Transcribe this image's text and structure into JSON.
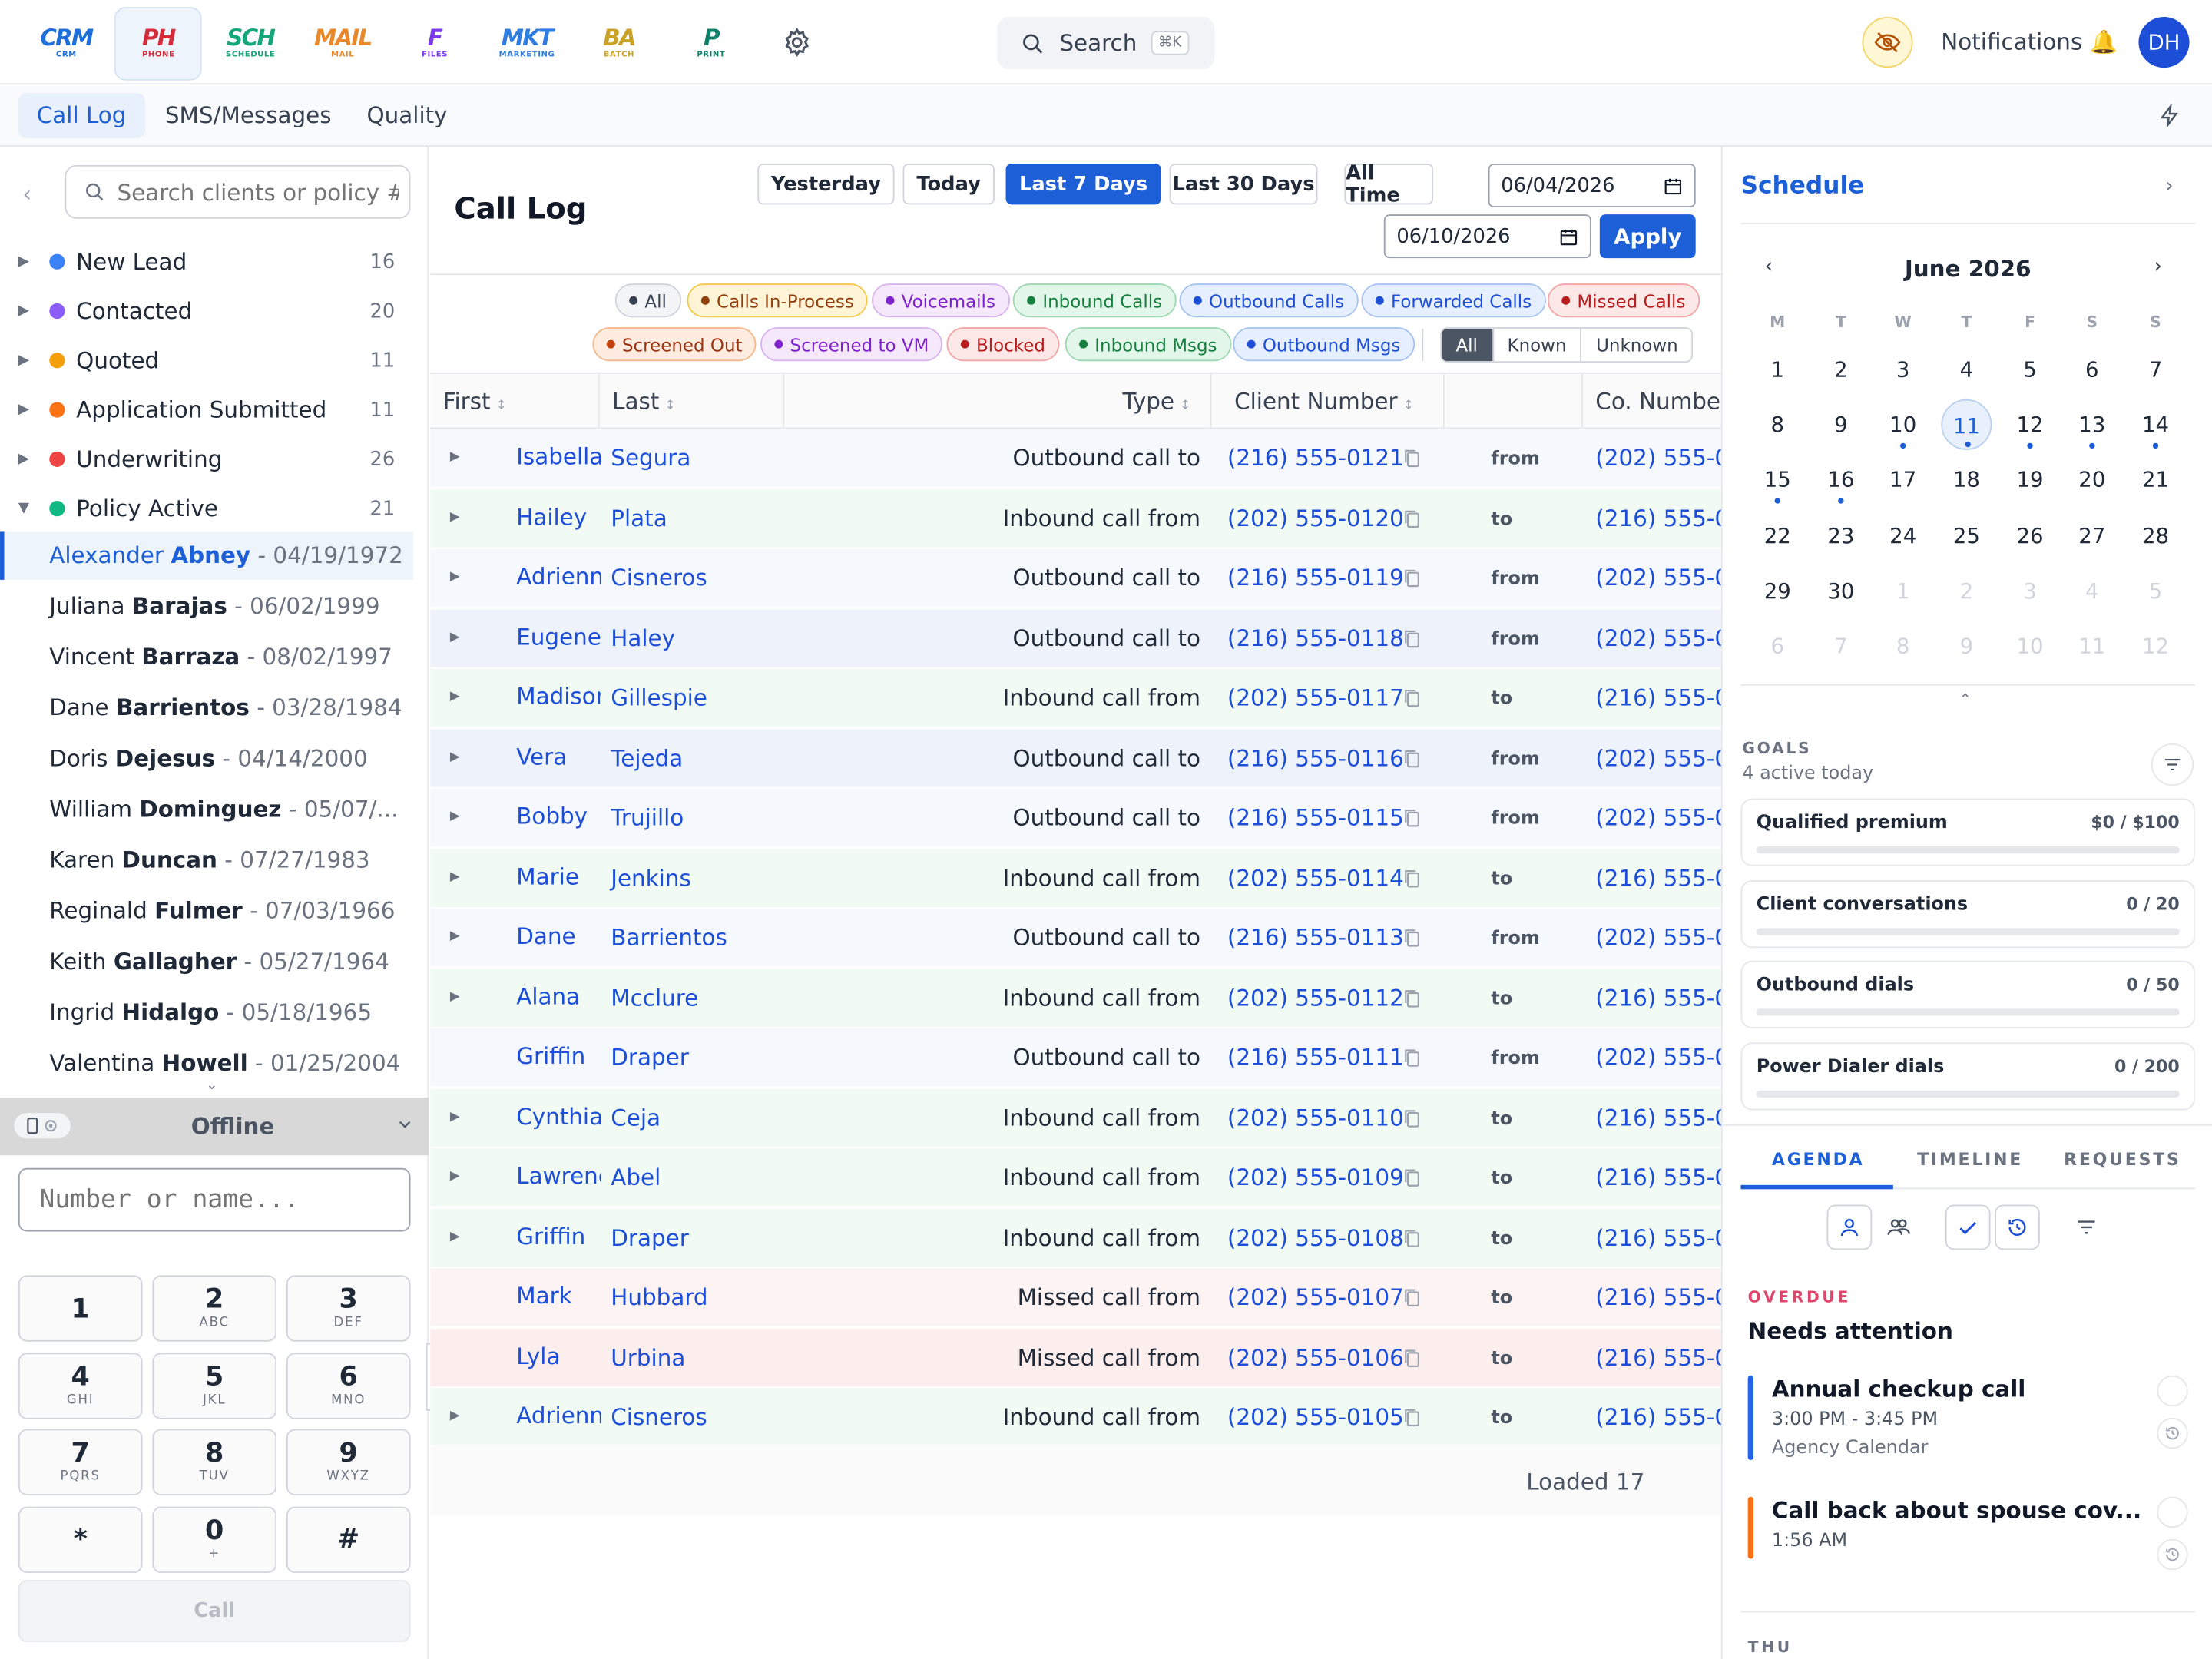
{
  "apps": [
    {
      "name": "crm",
      "logo": "CRM",
      "sub": "CRM",
      "color": "#1e6fd9",
      "active": false
    },
    {
      "name": "phone",
      "logo": "PH",
      "sub": "PHONE",
      "color": "#d42a3a",
      "active": true
    },
    {
      "name": "schedule",
      "logo": "SCH",
      "sub": "SCHEDULE",
      "color": "#17a57a",
      "active": false
    },
    {
      "name": "mail",
      "logo": "MAIL",
      "sub": "MAIL",
      "color": "#e9892b",
      "active": false
    },
    {
      "name": "files",
      "logo": "F",
      "sub": "FILES",
      "color": "#7c3aed",
      "active": false
    },
    {
      "name": "marketing",
      "logo": "MKT",
      "sub": "MARKETING",
      "color": "#2f7de1",
      "active": false
    },
    {
      "name": "batch",
      "logo": "BA",
      "sub": "BATCH",
      "color": "#c9a227",
      "active": false
    },
    {
      "name": "print",
      "logo": "P",
      "sub": "PRINT",
      "color": "#10806b",
      "active": false
    }
  ],
  "topbar": {
    "search_label": "Search",
    "search_kbd": "⌘K",
    "notifications": "Notifications 🔔",
    "avatar": "DH"
  },
  "subnav": {
    "tabs": [
      "Call Log",
      "SMS/Messages",
      "Quality"
    ],
    "active": 0
  },
  "left": {
    "search_placeholder": "Search clients or policy #",
    "stages": [
      {
        "label": "New Lead",
        "count": "16",
        "color": "#3b82f6",
        "expanded": false
      },
      {
        "label": "Contacted",
        "count": "20",
        "color": "#8b5cf6",
        "expanded": false
      },
      {
        "label": "Quoted",
        "count": "11",
        "color": "#f59e0b",
        "expanded": false
      },
      {
        "label": "Application Submitted",
        "count": "11",
        "color": "#f97316",
        "expanded": false
      },
      {
        "label": "Underwriting",
        "count": "26",
        "color": "#ef4444",
        "expanded": false
      },
      {
        "label": "Policy Active",
        "count": "21",
        "color": "#10b981",
        "expanded": true
      }
    ],
    "clients": [
      {
        "first": "Alexander",
        "last": "Abney",
        "dob": " - 04/19/1972",
        "selected": true
      },
      {
        "first": "Juliana",
        "last": "Barajas",
        "dob": " - 06/02/1999",
        "selected": false
      },
      {
        "first": "Vincent",
        "last": "Barraza",
        "dob": " - 08/02/1997",
        "selected": false
      },
      {
        "first": "Dane",
        "last": "Barrientos",
        "dob": " - 03/28/1984",
        "selected": false
      },
      {
        "first": "Doris",
        "last": "Dejesus",
        "dob": " - 04/14/2000",
        "selected": false
      },
      {
        "first": "William",
        "last": "Dominguez",
        "dob": " - 05/07/...",
        "selected": false
      },
      {
        "first": "Karen",
        "last": "Duncan",
        "dob": " - 07/27/1983",
        "selected": false
      },
      {
        "first": "Reginald",
        "last": "Fulmer",
        "dob": " - 07/03/1966",
        "selected": false
      },
      {
        "first": "Keith",
        "last": "Gallagher",
        "dob": " - 05/27/1964",
        "selected": false
      },
      {
        "first": "Ingrid",
        "last": "Hidalgo",
        "dob": " - 05/18/1965",
        "selected": false
      },
      {
        "first": "Valentina",
        "last": "Howell",
        "dob": " - 01/25/2004",
        "selected": false
      }
    ]
  },
  "dialer": {
    "status": "Offline",
    "placeholder": "Number or name...",
    "keys": [
      {
        "d": "1",
        "l": ""
      },
      {
        "d": "2",
        "l": "ABC"
      },
      {
        "d": "3",
        "l": "DEF"
      },
      {
        "d": "4",
        "l": "GHI"
      },
      {
        "d": "5",
        "l": "JKL"
      },
      {
        "d": "6",
        "l": "MNO"
      },
      {
        "d": "7",
        "l": "PQRS"
      },
      {
        "d": "8",
        "l": "TUV"
      },
      {
        "d": "9",
        "l": "WXYZ"
      },
      {
        "d": "*",
        "l": ""
      },
      {
        "d": "0",
        "l": "+"
      },
      {
        "d": "#",
        "l": ""
      }
    ],
    "call_label": "Call"
  },
  "calllog": {
    "title": "Call Log",
    "ranges": [
      "Yesterday",
      "Today",
      "Last 7 Days",
      "Last 30 Days",
      "All Time"
    ],
    "active_range": 2,
    "date_from": "06/04/2026",
    "date_to": "06/10/2026",
    "apply_label": "Apply",
    "chips": [
      {
        "label": "All",
        "bg": "#f3f4f6",
        "border": "#d1d5db",
        "fg": "#374151",
        "dot": "#374151"
      },
      {
        "label": "Calls In-Process",
        "bg": "#fff4d6",
        "border": "#f2c94c",
        "fg": "#92400e",
        "dot": "#92400e"
      },
      {
        "label": "Voicemails",
        "bg": "#f5e8fb",
        "border": "#d8b4f0",
        "fg": "#7e22ce",
        "dot": "#7e22ce"
      },
      {
        "label": "Inbound Calls",
        "bg": "#e3f6ea",
        "border": "#9ed8b3",
        "fg": "#15803d",
        "dot": "#15803d"
      },
      {
        "label": "Outbound Calls",
        "bg": "#e6efff",
        "border": "#a8c3f0",
        "fg": "#1d4ed8",
        "dot": "#1d4ed8"
      },
      {
        "label": "Forwarded Calls",
        "bg": "#e6efff",
        "border": "#a8c3f0",
        "fg": "#1d4ed8",
        "dot": "#1d4ed8"
      },
      {
        "label": "Missed Calls",
        "bg": "#fde8e8",
        "border": "#f3a5a5",
        "fg": "#b91c1c",
        "dot": "#b91c1c"
      },
      {
        "label": "Screened Out",
        "bg": "#fdecdf",
        "border": "#f5b88a",
        "fg": "#9a3412",
        "dot": "#c2410c"
      },
      {
        "label": "Screened to VM",
        "bg": "#f5e8fb",
        "border": "#d8b4f0",
        "fg": "#7e22ce",
        "dot": "#7e22ce"
      },
      {
        "label": "Blocked",
        "bg": "#fde8e8",
        "border": "#f3a5a5",
        "fg": "#b91c1c",
        "dot": "#b91c1c"
      },
      {
        "label": "Inbound Msgs",
        "bg": "#e3f6ea",
        "border": "#9ed8b3",
        "fg": "#15803d",
        "dot": "#15803d"
      },
      {
        "label": "Outbound Msgs",
        "bg": "#e6efff",
        "border": "#a8c3f0",
        "fg": "#1d4ed8",
        "dot": "#1d4ed8"
      }
    ],
    "known_filter": [
      "All",
      "Known",
      "Unknown"
    ],
    "known_active": 0,
    "columns": {
      "first": "First",
      "last": "Last",
      "type": "Type",
      "client": "Client Number",
      "co": "Co. Number"
    },
    "rows": [
      {
        "first": "Isabella",
        "last": "Segura",
        "type": "Outbound call to",
        "client": "(216) 555-0121",
        "dir": "from",
        "co": "(202) 555-0",
        "bg": "#f5f8fc",
        "exp": true
      },
      {
        "first": "Hailey",
        "last": "Plata",
        "type": "Inbound call from",
        "client": "(202) 555-0120",
        "dir": "to",
        "co": "(216) 555-0",
        "bg": "#f1faf3",
        "exp": true
      },
      {
        "first": "Adrienne",
        "last": "Cisneros",
        "type": "Outbound call to",
        "client": "(216) 555-0119",
        "dir": "from",
        "co": "(202) 555-0",
        "bg": "#f5f8fc",
        "exp": true
      },
      {
        "first": "Eugene",
        "last": "Haley",
        "type": "Outbound call to",
        "client": "(216) 555-0118",
        "dir": "from",
        "co": "(202) 555-0",
        "bg": "#eef3fb",
        "exp": true
      },
      {
        "first": "Madison",
        "last": "Gillespie",
        "type": "Inbound call from",
        "client": "(202) 555-0117",
        "dir": "to",
        "co": "(216) 555-0",
        "bg": "#f1faf3",
        "exp": true
      },
      {
        "first": "Vera",
        "last": "Tejeda",
        "type": "Outbound call to",
        "client": "(216) 555-0116",
        "dir": "from",
        "co": "(202) 555-0",
        "bg": "#eef3fb",
        "exp": true
      },
      {
        "first": "Bobby",
        "last": "Trujillo",
        "type": "Outbound call to",
        "client": "(216) 555-0115",
        "dir": "from",
        "co": "(202) 555-0",
        "bg": "#f5f8fc",
        "exp": true
      },
      {
        "first": "Marie",
        "last": "Jenkins",
        "type": "Inbound call from",
        "client": "(202) 555-0114",
        "dir": "to",
        "co": "(216) 555-0",
        "bg": "#f1faf3",
        "exp": true
      },
      {
        "first": "Dane",
        "last": "Barrientos",
        "type": "Outbound call to",
        "client": "(216) 555-0113",
        "dir": "from",
        "co": "(202) 555-0",
        "bg": "#f5f8fc",
        "exp": true
      },
      {
        "first": "Alana",
        "last": "Mcclure",
        "type": "Inbound call from",
        "client": "(202) 555-0112",
        "dir": "to",
        "co": "(216) 555-0",
        "bg": "#f1faf3",
        "exp": true
      },
      {
        "first": "Griffin",
        "last": "Draper",
        "type": "Outbound call to",
        "client": "(216) 555-0111",
        "dir": "from",
        "co": "(202) 555-0",
        "bg": "#f5f8fc",
        "exp": false
      },
      {
        "first": "Cynthia",
        "last": "Ceja",
        "type": "Inbound call from",
        "client": "(202) 555-0110",
        "dir": "to",
        "co": "(216) 555-0",
        "bg": "#f1faf3",
        "exp": true
      },
      {
        "first": "Lawrence",
        "last": "Abel",
        "type": "Inbound call from",
        "client": "(202) 555-0109",
        "dir": "to",
        "co": "(216) 555-0",
        "bg": "#f1faf3",
        "exp": true
      },
      {
        "first": "Griffin",
        "last": "Draper",
        "type": "Inbound call from",
        "client": "(202) 555-0108",
        "dir": "to",
        "co": "(216) 555-0",
        "bg": "#f1faf3",
        "exp": true
      },
      {
        "first": "Mark",
        "last": "Hubbard",
        "type": "Missed call from",
        "client": "(202) 555-0107",
        "dir": "to",
        "co": "(216) 555-0",
        "bg": "#fdf3f3",
        "exp": false
      },
      {
        "first": "Lyla",
        "last": "Urbina",
        "type": "Missed call from",
        "client": "(202) 555-0106",
        "dir": "to",
        "co": "(216) 555-0",
        "bg": "#fdeeee",
        "exp": false
      },
      {
        "first": "Adrienne",
        "last": "Cisneros",
        "type": "Inbound call from",
        "client": "(202) 555-0105",
        "dir": "to",
        "co": "(216) 555-0",
        "bg": "#f1faf3",
        "exp": true
      }
    ],
    "loaded_text": "Loaded 17"
  },
  "schedule": {
    "title": "Schedule",
    "month": "June 2026",
    "dow": [
      "M",
      "T",
      "W",
      "T",
      "F",
      "S",
      "S"
    ],
    "weeks": [
      [
        {
          "d": "1"
        },
        {
          "d": "2"
        },
        {
          "d": "3"
        },
        {
          "d": "4"
        },
        {
          "d": "5"
        },
        {
          "d": "6"
        },
        {
          "d": "7"
        }
      ],
      [
        {
          "d": "8"
        },
        {
          "d": "9"
        },
        {
          "d": "10",
          "ev": true
        },
        {
          "d": "11",
          "today": true,
          "ev": true
        },
        {
          "d": "12",
          "ev": true
        },
        {
          "d": "13",
          "ev": true
        },
        {
          "d": "14",
          "ev": true
        }
      ],
      [
        {
          "d": "15",
          "ev": true
        },
        {
          "d": "16",
          "ev": true
        },
        {
          "d": "17"
        },
        {
          "d": "18"
        },
        {
          "d": "19"
        },
        {
          "d": "20"
        },
        {
          "d": "21"
        }
      ],
      [
        {
          "d": "22"
        },
        {
          "d": "23"
        },
        {
          "d": "24"
        },
        {
          "d": "25"
        },
        {
          "d": "26"
        },
        {
          "d": "27"
        },
        {
          "d": "28"
        }
      ],
      [
        {
          "d": "29"
        },
        {
          "d": "30"
        },
        {
          "d": "1",
          "m": true
        },
        {
          "d": "2",
          "m": true
        },
        {
          "d": "3",
          "m": true
        },
        {
          "d": "4",
          "m": true
        },
        {
          "d": "5",
          "m": true
        }
      ],
      [
        {
          "d": "6",
          "m": true
        },
        {
          "d": "7",
          "m": true
        },
        {
          "d": "8",
          "m": true
        },
        {
          "d": "9",
          "m": true
        },
        {
          "d": "10",
          "m": true
        },
        {
          "d": "11",
          "m": true
        },
        {
          "d": "12",
          "m": true
        }
      ]
    ],
    "goals_header": "GOALS",
    "goals_sub": "4 active today",
    "goals": [
      {
        "title": "Qualified premium",
        "value": "$0 / $100",
        "progress": 0
      },
      {
        "title": "Client conversations",
        "value": "0 / 20",
        "progress": 0
      },
      {
        "title": "Outbound dials",
        "value": "0 / 50",
        "progress": 0
      },
      {
        "title": "Power Dialer dials",
        "value": "0 / 200",
        "progress": 0
      }
    ],
    "agenda_tabs": [
      "AGENDA",
      "TIMELINE",
      "REQUESTS"
    ],
    "overdue_label": "OVERDUE",
    "needs_label": "Needs attention",
    "tasks": [
      {
        "title": "Annual checkup call",
        "time": "3:00 PM - 3:45 PM",
        "cal": "Agency Calendar",
        "color": "#2563eb"
      },
      {
        "title": "Call back about spouse cov...",
        "time": "1:56 AM",
        "cal": "",
        "color": "#f97316"
      }
    ],
    "next_day": "THU"
  }
}
